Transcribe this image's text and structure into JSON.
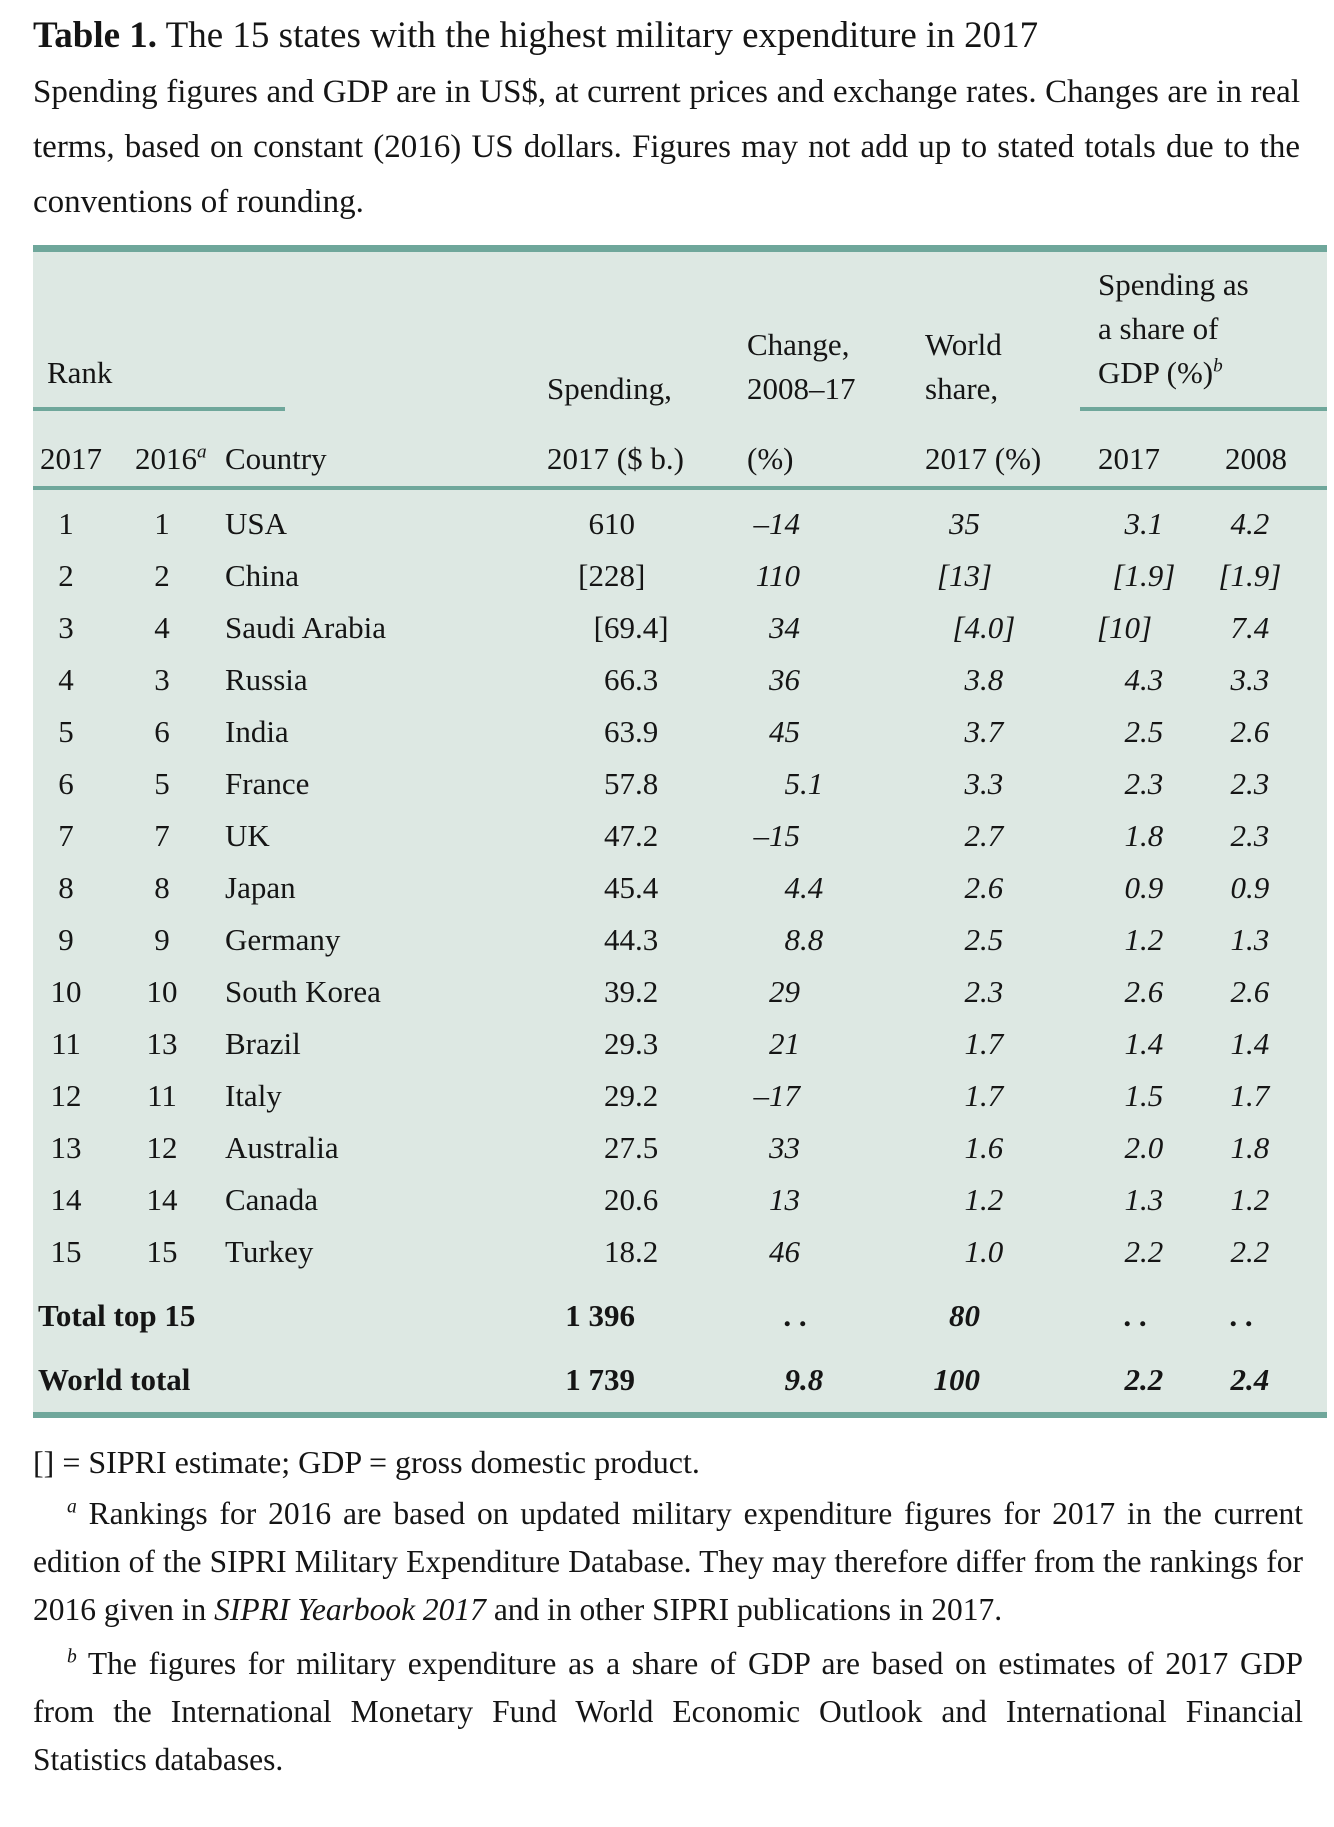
{
  "title": {
    "label": "Table 1.",
    "text": "The 15 states with the highest military expenditure in 2017"
  },
  "intro": "Spending figures and GDP are in US$, at current prices and exchange rates. Changes are in real terms, based on constant (2016) US dollars. Figures may not add up to stated totals due to the conventions of rounding.",
  "colors": {
    "table_background": "#dde8e3",
    "rule": "#6fa79b",
    "text": "#151515"
  },
  "table": {
    "header": {
      "rank_group": "Rank",
      "rank_2017": "2017",
      "rank_2016": "2016",
      "rank_2016_sup": "a",
      "country": "Country",
      "spending_l1": "Spending,",
      "spending_l2": "2017 ($ b.)",
      "change_l1": "Change,",
      "change_l2": "2008–17",
      "change_l3": "(%)",
      "share_l1": "World",
      "share_l2": "share,",
      "share_l3": "2017 (%)",
      "gdp_group_l1": "Spending as",
      "gdp_group_l2": "a share of",
      "gdp_group_l3": "GDP (%)",
      "gdp_group_sup": "b",
      "gdp_2017": "2017",
      "gdp_2008": "2008"
    },
    "rows": [
      {
        "rank2017": "1",
        "rank2016": "1",
        "country": "USA",
        "spending": "610",
        "change": "–14",
        "share": "35",
        "gdp2017": "3.1",
        "gdp2008": "4.2"
      },
      {
        "rank2017": "2",
        "rank2016": "2",
        "country": "China",
        "spending": "[228]",
        "change": "110",
        "share": "[13]",
        "gdp2017": "[1.9]",
        "gdp2008": "[1.9]"
      },
      {
        "rank2017": "3",
        "rank2016": "4",
        "country": "Saudi Arabia",
        "spending": "[69.4]",
        "change": "34",
        "share": "[4.0]",
        "gdp2017": "[10]",
        "gdp2008": "7.4"
      },
      {
        "rank2017": "4",
        "rank2016": "3",
        "country": "Russia",
        "spending": "66.3",
        "change": "36",
        "share": "3.8",
        "gdp2017": "4.3",
        "gdp2008": "3.3"
      },
      {
        "rank2017": "5",
        "rank2016": "6",
        "country": "India",
        "spending": "63.9",
        "change": "45",
        "share": "3.7",
        "gdp2017": "2.5",
        "gdp2008": "2.6"
      },
      {
        "rank2017": "6",
        "rank2016": "5",
        "country": "France",
        "spending": "57.8",
        "change": "5.1",
        "share": "3.3",
        "gdp2017": "2.3",
        "gdp2008": "2.3"
      },
      {
        "rank2017": "7",
        "rank2016": "7",
        "country": "UK",
        "spending": "47.2",
        "change": "–15",
        "share": "2.7",
        "gdp2017": "1.8",
        "gdp2008": "2.3"
      },
      {
        "rank2017": "8",
        "rank2016": "8",
        "country": "Japan",
        "spending": "45.4",
        "change": "4.4",
        "share": "2.6",
        "gdp2017": "0.9",
        "gdp2008": "0.9"
      },
      {
        "rank2017": "9",
        "rank2016": "9",
        "country": "Germany",
        "spending": "44.3",
        "change": "8.8",
        "share": "2.5",
        "gdp2017": "1.2",
        "gdp2008": "1.3"
      },
      {
        "rank2017": "10",
        "rank2016": "10",
        "country": "South Korea",
        "spending": "39.2",
        "change": "29",
        "share": "2.3",
        "gdp2017": "2.6",
        "gdp2008": "2.6"
      },
      {
        "rank2017": "11",
        "rank2016": "13",
        "country": "Brazil",
        "spending": "29.3",
        "change": "21",
        "share": "1.7",
        "gdp2017": "1.4",
        "gdp2008": "1.4"
      },
      {
        "rank2017": "12",
        "rank2016": "11",
        "country": "Italy",
        "spending": "29.2",
        "change": "–17",
        "share": "1.7",
        "gdp2017": "1.5",
        "gdp2008": "1.7"
      },
      {
        "rank2017": "13",
        "rank2016": "12",
        "country": "Australia",
        "spending": "27.5",
        "change": "33",
        "share": "1.6",
        "gdp2017": "2.0",
        "gdp2008": "1.8"
      },
      {
        "rank2017": "14",
        "rank2016": "14",
        "country": "Canada",
        "spending": "20.6",
        "change": "13",
        "share": "1.2",
        "gdp2017": "1.3",
        "gdp2008": "1.2"
      },
      {
        "rank2017": "15",
        "rank2016": "15",
        "country": "Turkey",
        "spending": "18.2",
        "change": "46",
        "share": "1.0",
        "gdp2017": "2.2",
        "gdp2008": "2.2"
      }
    ],
    "totals": [
      {
        "label": "Total top 15",
        "spending": "1 396",
        "change": ". .",
        "share": "80",
        "gdp2017": ". .",
        "gdp2008": ". ."
      },
      {
        "label": "World total",
        "spending": "1 739",
        "change": "9.8",
        "share": "100",
        "gdp2017": "2.2",
        "gdp2008": "2.4"
      }
    ]
  },
  "footnotes": {
    "legend": "[] = SIPRI estimate; GDP = gross domestic product.",
    "a_sup": "a",
    "a_text1": " Rankings for 2016 are based on updated military expenditure figures for 2017 in the current edition of the SIPRI Military Expenditure Database. They may therefore differ from the rankings for 2016 given in ",
    "a_italic": "SIPRI Yearbook 2017",
    "a_text2": " and in other SIPRI publications in 2017.",
    "b_sup": "b",
    "b_text": " The figures for military expenditure as a share of GDP are based on estimates of 2017 GDP from the International Monetary Fund World Economic Outlook and International Financial Statistics databases."
  }
}
